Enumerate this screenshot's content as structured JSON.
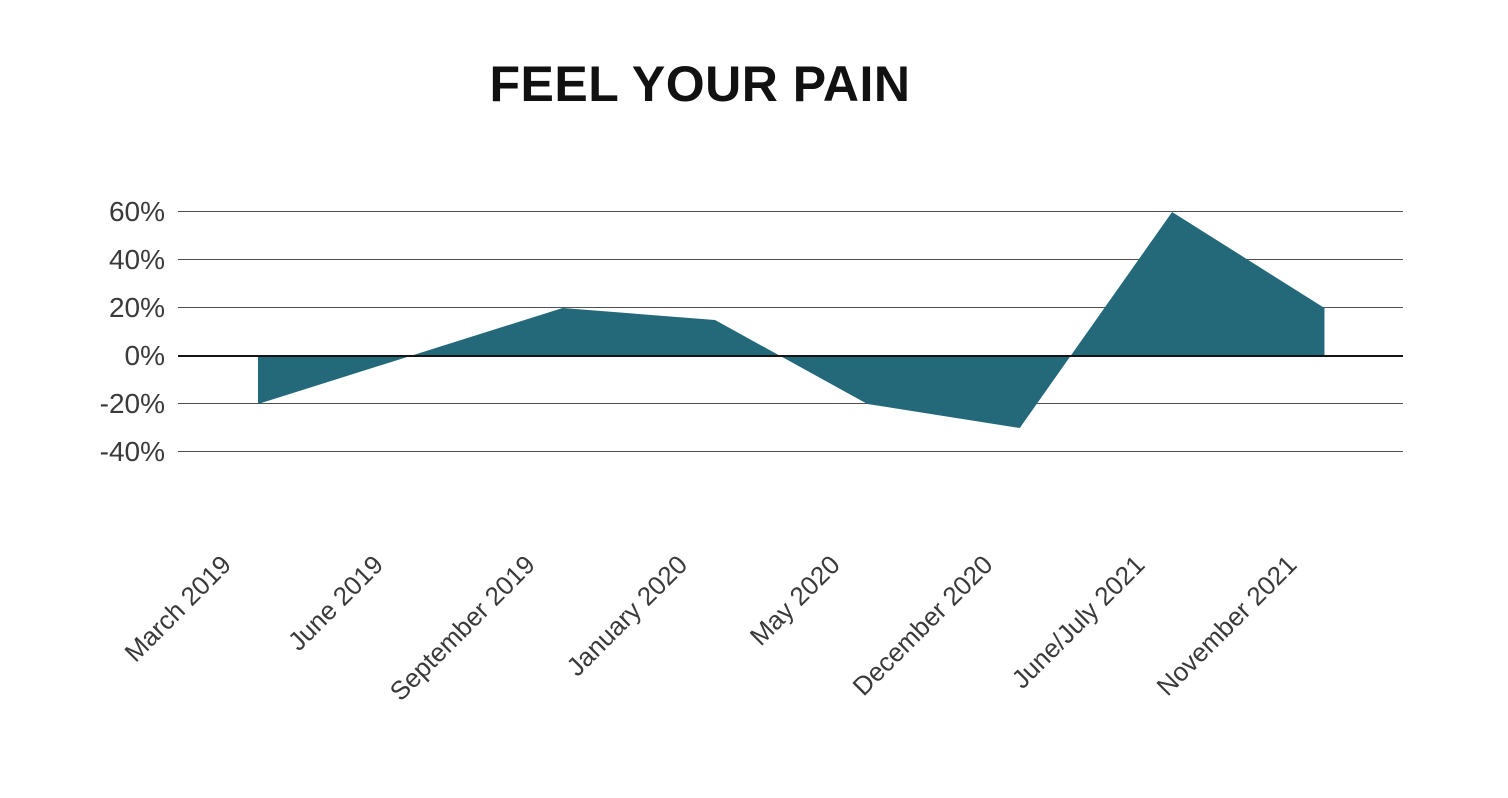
{
  "chart_data": {
    "type": "area",
    "title": "FEEL YOUR PAIN",
    "xlabel": "",
    "ylabel": "",
    "categories": [
      "March 2019",
      "June 2019",
      "September 2019",
      "January 2020",
      "May 2020",
      "December 2020",
      "June/July 2021",
      "November 2021"
    ],
    "values": [
      -20,
      0,
      20,
      15,
      -20,
      -30,
      60,
      20
    ],
    "value_unit": "%",
    "baseline": 0,
    "ylim": [
      -40,
      60
    ],
    "yticks": [
      60,
      40,
      20,
      0,
      -20,
      -40
    ],
    "ytick_labels": [
      "60%",
      "40%",
      "20%",
      "0%",
      "-20%",
      "-40%"
    ],
    "grid": true,
    "legend": "none",
    "fill_color": "#236979",
    "gridline_color": "#4f4f4f",
    "zero_axis_color": "#151515",
    "label_color": "#3a3a3a",
    "title_color": "#111111",
    "background_color": "#ffffff"
  }
}
